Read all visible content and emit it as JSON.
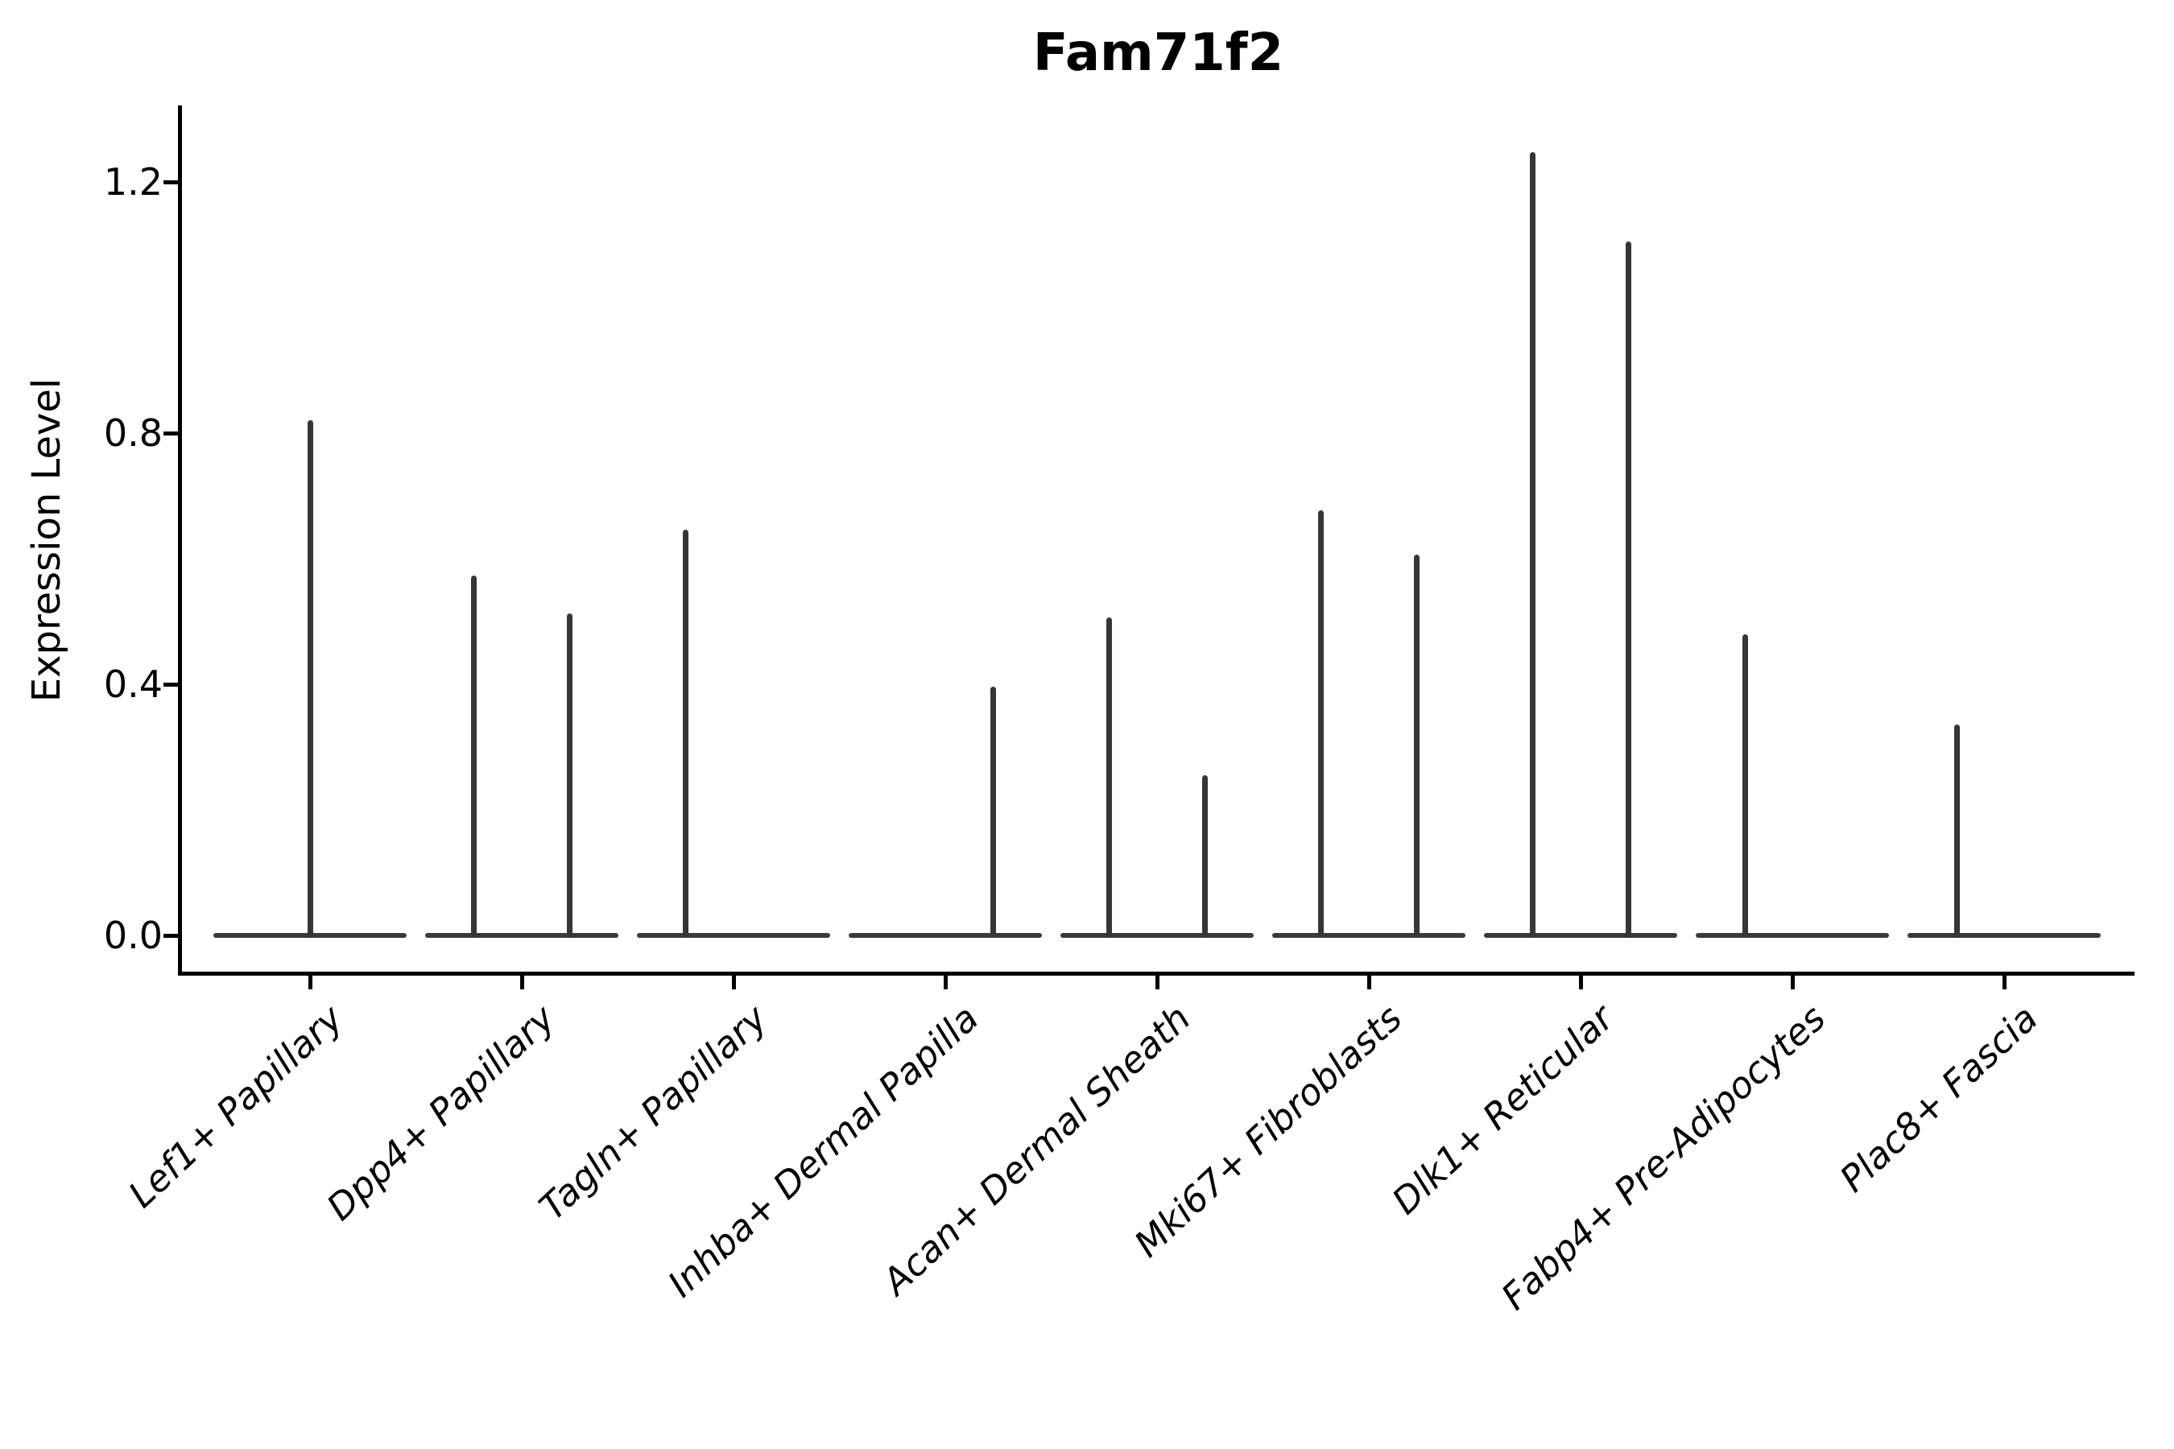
{
  "title": "Fam71f2",
  "chart_data": {
    "type": "violin",
    "title": "Fam71f2",
    "xlabel": "",
    "ylabel": "Expression Level",
    "ylim": [
      -0.06,
      1.32
    ],
    "yticks": [
      0.0,
      0.4,
      0.8,
      1.2
    ],
    "ytick_labels": [
      "0.0",
      "0.4",
      "0.8",
      "1.2"
    ],
    "grid": false,
    "legend_position": "none",
    "x_tick_rotation_deg": 43,
    "violin_width": 0.91,
    "categories": [
      "Lef1+ Papillary",
      "Dpp4+ Papillary",
      "Tagln+ Papillary",
      "Inhba+ Dermal Papilla",
      "Acan+ Dermal Sheath",
      "Mki67+ Fibroblasts",
      "Dlk1+ Reticular",
      "Fabp4+ Pre-Adipocytes",
      "Plac8+ Fascia"
    ],
    "series": [
      {
        "name": "Lef1+ Papillary",
        "baseline_value": 0.0,
        "spikes": [
          {
            "offset": 0.0,
            "value": 0.821
          }
        ]
      },
      {
        "name": "Dpp4+ Papillary",
        "baseline_value": 0.0,
        "spikes": [
          {
            "offset": -0.225,
            "value": 0.573
          },
          {
            "offset": 0.225,
            "value": 0.513
          }
        ]
      },
      {
        "name": "Tagln+ Papillary",
        "baseline_value": 0.0,
        "spikes": [
          {
            "offset": -0.225,
            "value": 0.646
          }
        ]
      },
      {
        "name": "Inhba+ Dermal Papilla",
        "baseline_value": 0.0,
        "spikes": [
          {
            "offset": 0.225,
            "value": 0.396
          }
        ]
      },
      {
        "name": "Acan+ Dermal Sheath",
        "baseline_value": 0.0,
        "spikes": [
          {
            "offset": -0.225,
            "value": 0.506
          },
          {
            "offset": 0.228,
            "value": 0.255
          }
        ]
      },
      {
        "name": "Mki67+ Fibroblasts",
        "baseline_value": 0.0,
        "spikes": [
          {
            "offset": -0.225,
            "value": 0.677
          },
          {
            "offset": 0.228,
            "value": 0.606
          }
        ]
      },
      {
        "name": "Dlk1+ Reticular",
        "baseline_value": 0.0,
        "spikes": [
          {
            "offset": -0.225,
            "value": 1.247
          },
          {
            "offset": 0.228,
            "value": 1.105
          }
        ]
      },
      {
        "name": "Fabp4+ Pre-Adipocytes",
        "baseline_value": 0.0,
        "spikes": [
          {
            "offset": -0.221,
            "value": 0.479
          }
        ]
      },
      {
        "name": "Plac8+ Fascia",
        "baseline_value": 0.0,
        "spikes": [
          {
            "offset": -0.221,
            "value": 0.336
          }
        ]
      }
    ],
    "colors": {
      "spine": "#000000",
      "violin": "#3a3a3a",
      "text": "#000000",
      "background": "#ffffff"
    }
  }
}
